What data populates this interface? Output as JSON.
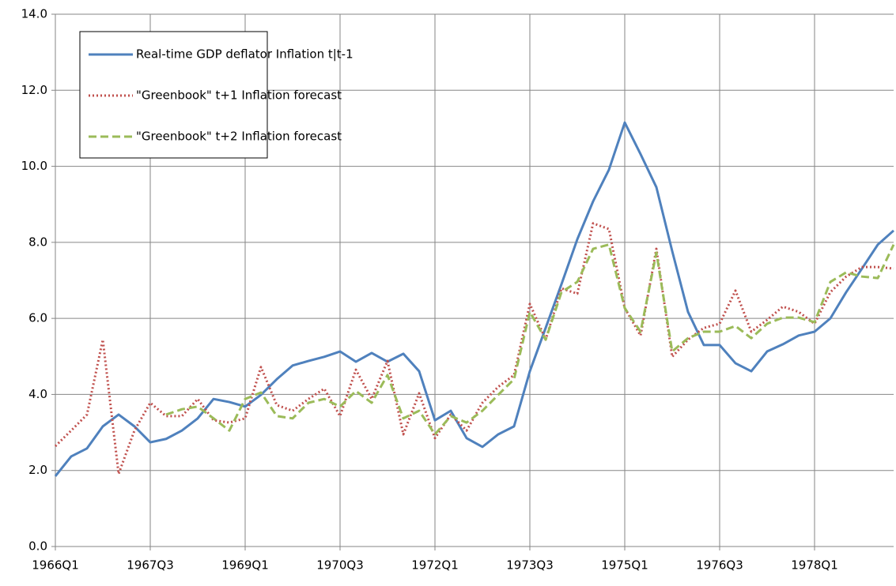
{
  "chart_data": {
    "type": "line",
    "categories": [
      "1966Q1",
      null,
      null,
      null,
      null,
      null,
      "1967Q3",
      null,
      null,
      null,
      null,
      null,
      "1969Q1",
      null,
      null,
      null,
      null,
      null,
      "1970Q3",
      null,
      null,
      null,
      null,
      null,
      "1972Q1",
      null,
      null,
      null,
      null,
      null,
      "1973Q3",
      null,
      null,
      null,
      null,
      null,
      "1975Q1",
      null,
      null,
      null,
      null,
      null,
      "1976Q3",
      null,
      null,
      null,
      null,
      null,
      "1978Q1",
      null,
      null,
      null,
      null,
      null
    ],
    "series": [
      {
        "name": "Real-time GDP deflator Inflation t|t-1",
        "color": "#4f81bd",
        "dash": "solid",
        "values": [
          1.85,
          2.37,
          2.58,
          3.16,
          3.47,
          3.16,
          2.74,
          2.83,
          3.05,
          3.37,
          3.88,
          3.8,
          3.68,
          3.99,
          4.4,
          4.76,
          4.88,
          4.99,
          5.13,
          4.86,
          5.09,
          4.86,
          5.07,
          4.61,
          3.32,
          3.57,
          2.85,
          2.62,
          2.95,
          3.16,
          4.61,
          5.75,
          6.9,
          8.08,
          9.08,
          9.91,
          11.15,
          10.32,
          9.45,
          7.77,
          6.17,
          5.3,
          5.3,
          4.82,
          4.61,
          5.13,
          5.32,
          5.55,
          5.65,
          6.0,
          6.69,
          7.31,
          7.94,
          8.31
        ]
      },
      {
        "name": "\"Greenbook\" t+1 Inflation forecast",
        "color": "#c0504d",
        "dash": "dotted",
        "values": [
          2.64,
          3.05,
          3.47,
          5.44,
          1.91,
          3.05,
          3.78,
          3.43,
          3.43,
          3.88,
          3.32,
          3.26,
          3.37,
          4.72,
          3.72,
          3.57,
          3.88,
          4.15,
          3.43,
          4.65,
          3.88,
          4.88,
          2.95,
          4.03,
          2.85,
          3.47,
          3.05,
          3.78,
          4.2,
          4.51,
          6.38,
          5.44,
          6.79,
          6.65,
          8.5,
          8.35,
          6.27,
          5.55,
          7.83,
          4.99,
          5.44,
          5.75,
          5.86,
          6.73,
          5.65,
          5.96,
          6.31,
          6.17,
          5.86,
          6.69,
          7.1,
          7.35,
          7.35,
          7.31
        ]
      },
      {
        "name": "\"Greenbook\" t+2 Inflation forecast",
        "color": "#9bbb59",
        "dash": "dashed",
        "values": [
          null,
          null,
          null,
          null,
          null,
          null,
          null,
          3.47,
          3.61,
          3.68,
          3.37,
          3.05,
          3.88,
          4.05,
          3.43,
          3.37,
          3.78,
          3.88,
          3.68,
          4.09,
          3.78,
          4.51,
          3.37,
          3.57,
          2.95,
          3.43,
          3.26,
          3.57,
          3.99,
          4.4,
          6.17,
          5.44,
          6.69,
          6.96,
          7.83,
          7.94,
          6.27,
          5.65,
          7.73,
          5.13,
          5.48,
          5.65,
          5.65,
          5.8,
          5.48,
          5.86,
          6.02,
          6.02,
          5.9,
          6.96,
          7.21,
          7.1,
          7.06,
          7.94
        ]
      }
    ],
    "ylim": [
      0,
      14
    ],
    "yticks": [
      {
        "value": 0,
        "label": "0.0"
      },
      {
        "value": 2,
        "label": "2.0"
      },
      {
        "value": 4,
        "label": "4.0"
      },
      {
        "value": 6,
        "label": "6.0"
      },
      {
        "value": 8,
        "label": "8.0"
      },
      {
        "value": 10,
        "label": "10.0"
      },
      {
        "value": 12,
        "label": "12.0"
      },
      {
        "value": 14,
        "label": "14.0"
      }
    ],
    "grid": true,
    "legend": "top-left"
  }
}
